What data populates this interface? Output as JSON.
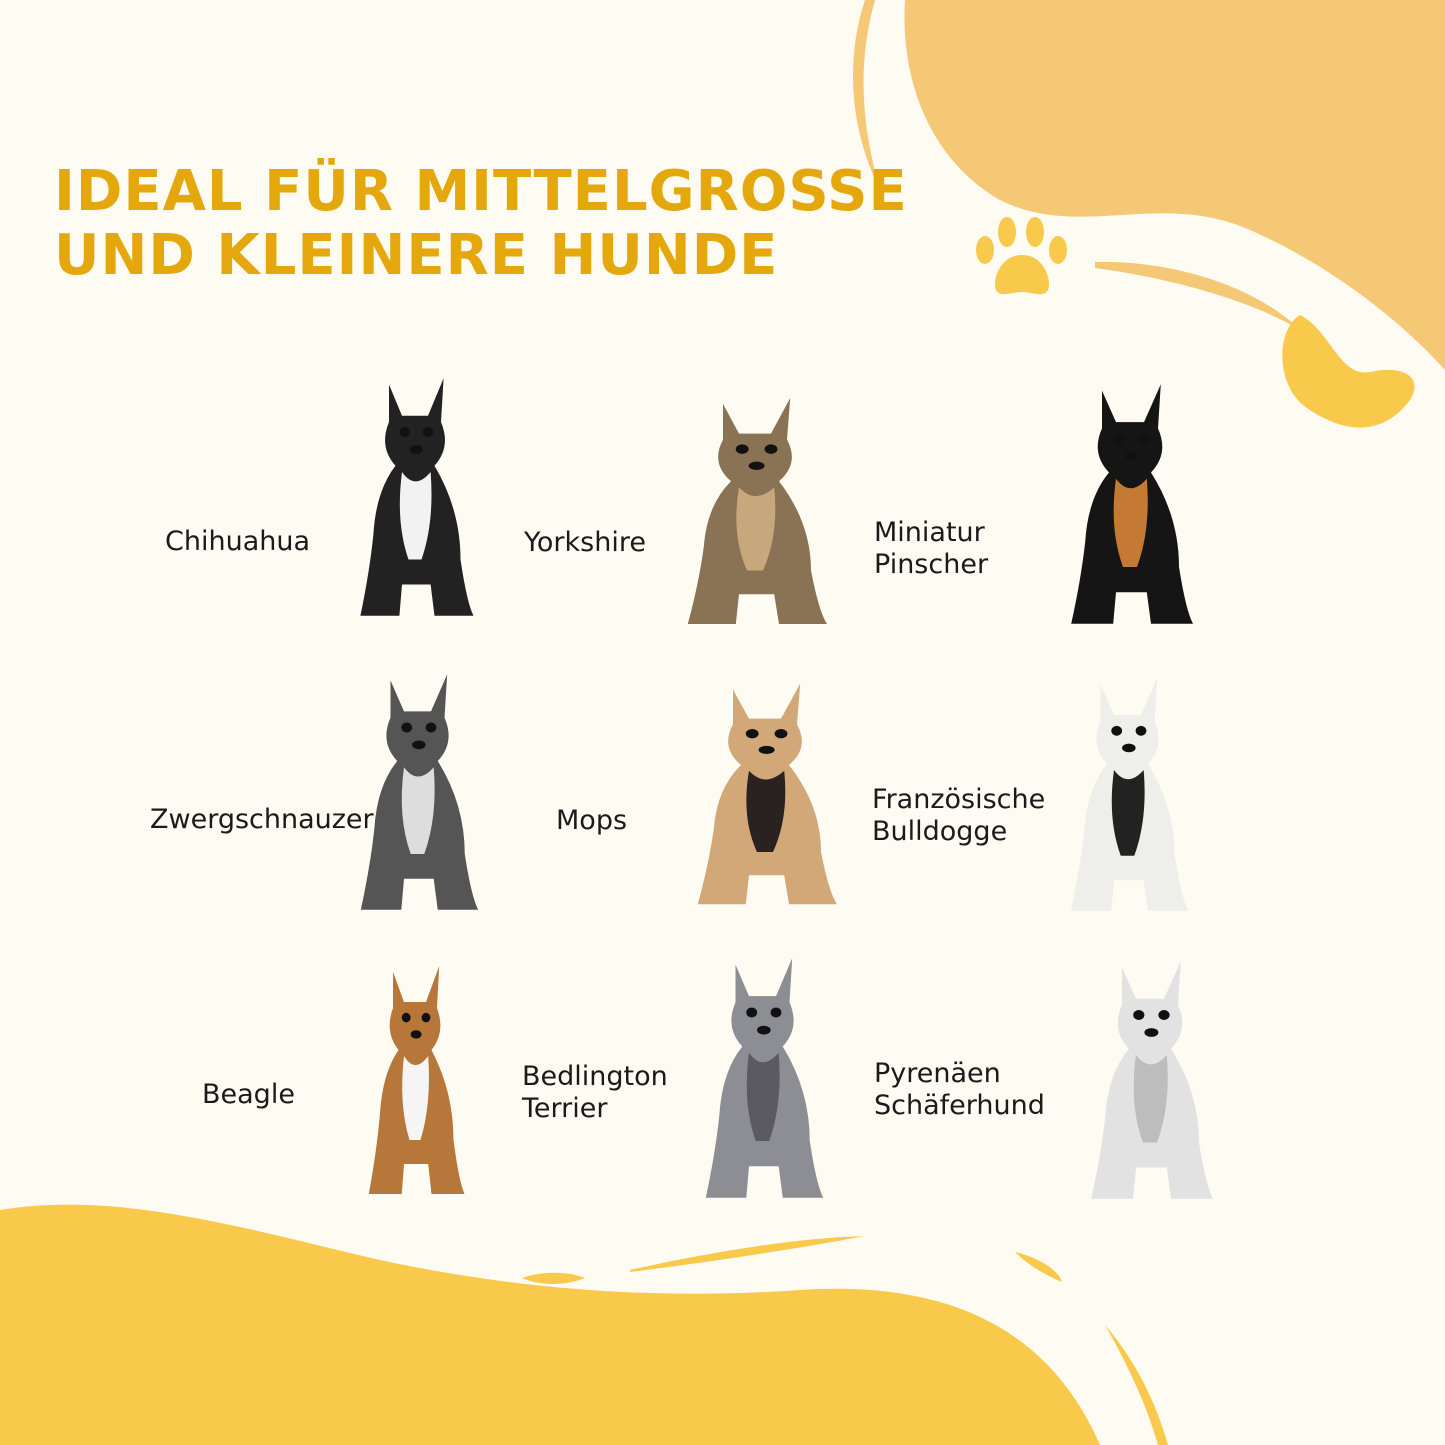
{
  "title": {
    "line1": "IDEAL FÜR MITTELGROSSE",
    "line2": "UND KLEINERE HUNDE"
  },
  "colors": {
    "title": "#E4A70C",
    "background": "#FEFBF2",
    "blob_light": "#F5C876",
    "blob_yellow": "#F9C94B"
  },
  "breeds": [
    {
      "line1": "Chihuahua",
      "line2": "",
      "coat": "#222",
      "accent": "#f2f2f2"
    },
    {
      "line1": "Yorkshire",
      "line2": "",
      "coat": "#8a7255",
      "accent": "#c9a77d"
    },
    {
      "line1": "Miniatur",
      "line2": "Pinscher",
      "coat": "#151515",
      "accent": "#c47a32"
    },
    {
      "line1": "Zwergschnauzer",
      "line2": "",
      "coat": "#555",
      "accent": "#ddd"
    },
    {
      "line1": "Mops",
      "line2": "",
      "coat": "#d2a878",
      "accent": "#2a2220"
    },
    {
      "line1": "Französische",
      "line2": "Bulldogge",
      "coat": "#eeeeea",
      "accent": "#222"
    },
    {
      "line1": "Beagle",
      "line2": "",
      "coat": "#b7763a",
      "accent": "#f5f5f5"
    },
    {
      "line1": "Bedlington",
      "line2": "Terrier",
      "coat": "#8d8d94",
      "accent": "#5a5a60"
    },
    {
      "line1": "Pyrenäen",
      "line2": "Schäferhund",
      "coat": "#e2e2e2",
      "accent": "#bdbdbd"
    }
  ]
}
